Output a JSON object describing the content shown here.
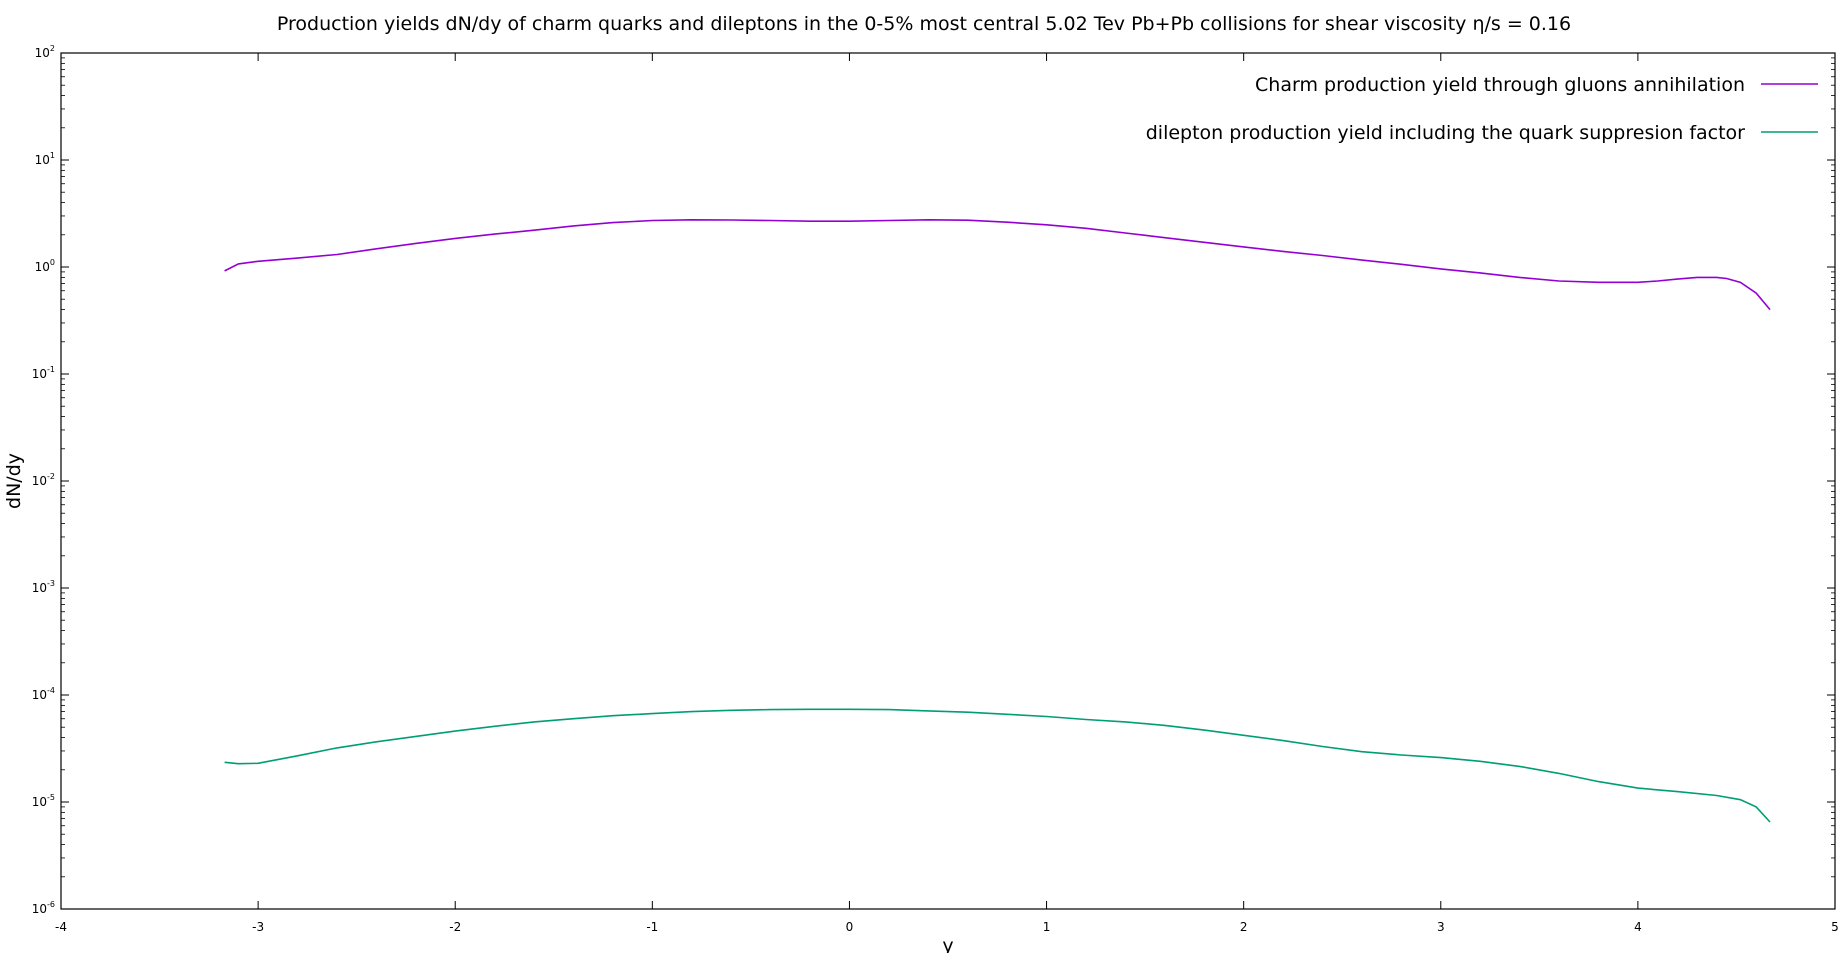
{
  "chart_data": {
    "type": "line",
    "title": "Production yields dN/dy of charm quarks and dileptons in the 0-5% most central 5.02 Tev Pb+Pb collisions for shear viscosity η/s = 0.16",
    "xlabel": "y",
    "ylabel": "dN/dy",
    "xlim": [
      -4,
      5
    ],
    "ylim": [
      1e-06,
      100
    ],
    "yscale": "log",
    "xticks": [
      "-4",
      "-3",
      "-2",
      "-1",
      "0",
      "1",
      "2",
      "3",
      "4",
      "5"
    ],
    "yticks": [
      {
        "base": "10",
        "exp": "2"
      },
      {
        "base": "10",
        "exp": "1"
      },
      {
        "base": "10",
        "exp": "0"
      },
      {
        "base": "10",
        "exp": "-1"
      },
      {
        "base": "10",
        "exp": "-2"
      },
      {
        "base": "10",
        "exp": "-3"
      },
      {
        "base": "10",
        "exp": "-4"
      },
      {
        "base": "10",
        "exp": "-5"
      },
      {
        "base": "10",
        "exp": "-6"
      }
    ],
    "grid": false,
    "legend_position": "top-right",
    "series": [
      {
        "name": "Charm production yield through gluons annihilation",
        "color": "#9400d3",
        "x": [
          -3.17,
          -3.1,
          -3.0,
          -2.8,
          -2.6,
          -2.4,
          -2.2,
          -2.0,
          -1.8,
          -1.6,
          -1.4,
          -1.2,
          -1.0,
          -0.8,
          -0.6,
          -0.4,
          -0.2,
          0.0,
          0.2,
          0.4,
          0.6,
          0.8,
          1.0,
          1.2,
          1.4,
          1.6,
          1.8,
          2.0,
          2.2,
          2.4,
          2.6,
          2.8,
          3.0,
          3.2,
          3.4,
          3.6,
          3.8,
          4.0,
          4.1,
          4.2,
          4.3,
          4.4,
          4.45,
          4.52,
          4.6,
          4.67
        ],
        "y": [
          0.92,
          1.07,
          1.13,
          1.21,
          1.31,
          1.48,
          1.66,
          1.85,
          2.03,
          2.21,
          2.42,
          2.6,
          2.72,
          2.76,
          2.75,
          2.72,
          2.68,
          2.68,
          2.72,
          2.76,
          2.74,
          2.62,
          2.48,
          2.3,
          2.08,
          1.88,
          1.7,
          1.54,
          1.4,
          1.28,
          1.16,
          1.06,
          0.96,
          0.88,
          0.8,
          0.74,
          0.72,
          0.72,
          0.74,
          0.77,
          0.8,
          0.8,
          0.78,
          0.72,
          0.57,
          0.4
        ]
      },
      {
        "name": "dilepton production yield including the quark suppresion factor",
        "color": "#009e73",
        "x": [
          -3.17,
          -3.1,
          -3.0,
          -2.8,
          -2.6,
          -2.4,
          -2.2,
          -2.0,
          -1.8,
          -1.6,
          -1.4,
          -1.2,
          -1.0,
          -0.8,
          -0.6,
          -0.4,
          -0.2,
          0.0,
          0.2,
          0.4,
          0.6,
          0.8,
          1.0,
          1.2,
          1.4,
          1.6,
          1.8,
          2.0,
          2.2,
          2.4,
          2.6,
          2.8,
          3.0,
          3.2,
          3.4,
          3.6,
          3.8,
          4.0,
          4.2,
          4.4,
          4.52,
          4.6,
          4.67
        ],
        "y": [
          2.35e-05,
          2.28e-05,
          2.3e-05,
          2.7e-05,
          3.2e-05,
          3.65e-05,
          4.1e-05,
          4.6e-05,
          5.1e-05,
          5.6e-05,
          6e-05,
          6.4e-05,
          6.7e-05,
          7e-05,
          7.2e-05,
          7.3e-05,
          7.35e-05,
          7.35e-05,
          7.3e-05,
          7.1e-05,
          6.9e-05,
          6.6e-05,
          6.3e-05,
          5.9e-05,
          5.6e-05,
          5.2e-05,
          4.7e-05,
          4.2e-05,
          3.75e-05,
          3.3e-05,
          2.95e-05,
          2.75e-05,
          2.6e-05,
          2.4e-05,
          2.15e-05,
          1.85e-05,
          1.55e-05,
          1.35e-05,
          1.25e-05,
          1.15e-05,
          1.05e-05,
          9e-06,
          6.5e-06
        ]
      }
    ]
  }
}
